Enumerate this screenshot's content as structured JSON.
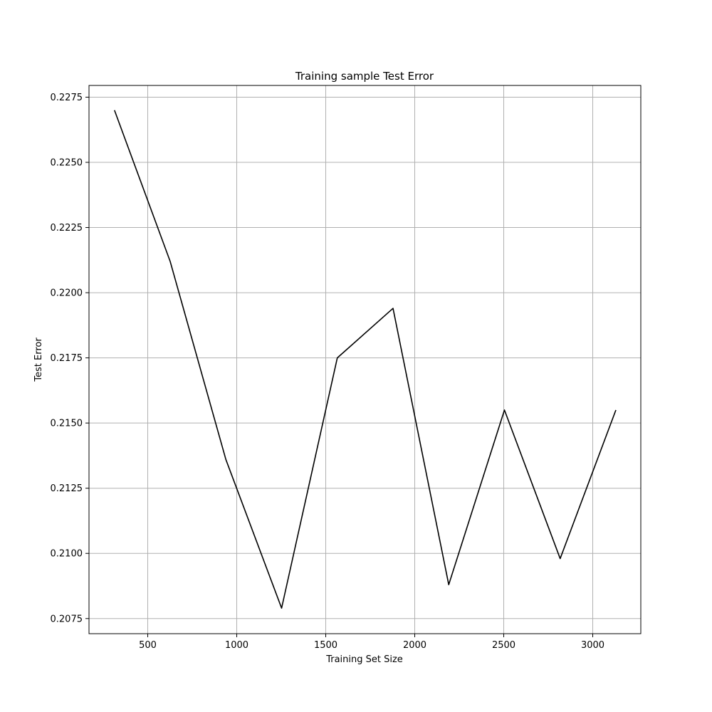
{
  "chart_data": {
    "type": "line",
    "title": "Training sample Test Error",
    "xlabel": "Training Set Size",
    "ylabel": "Test Error",
    "xlim": [
      170,
      3270
    ],
    "ylim": [
      0.20692,
      0.22795
    ],
    "grid": true,
    "xticks": [
      500,
      1000,
      1500,
      2000,
      2500,
      3000
    ],
    "xtick_labels": [
      "500",
      "1000",
      "1500",
      "2000",
      "2500",
      "3000"
    ],
    "yticks": [
      0.2075,
      0.21,
      0.2125,
      0.215,
      0.2175,
      0.22,
      0.2225,
      0.225,
      0.2275
    ],
    "ytick_labels": [
      "0.2075",
      "0.2100",
      "0.2125",
      "0.2150",
      "0.2175",
      "0.2200",
      "0.2225",
      "0.2250",
      "0.2275"
    ],
    "series": [
      {
        "color": "#000000",
        "x": [
          313,
          626,
          939,
          1252,
          1565,
          1878,
          2191,
          2504,
          2817,
          3130
        ],
        "y": [
          0.227,
          0.2212,
          0.2136,
          0.2079,
          0.2175,
          0.2194,
          0.2088,
          0.2155,
          0.2098,
          0.2155
        ]
      }
    ]
  }
}
